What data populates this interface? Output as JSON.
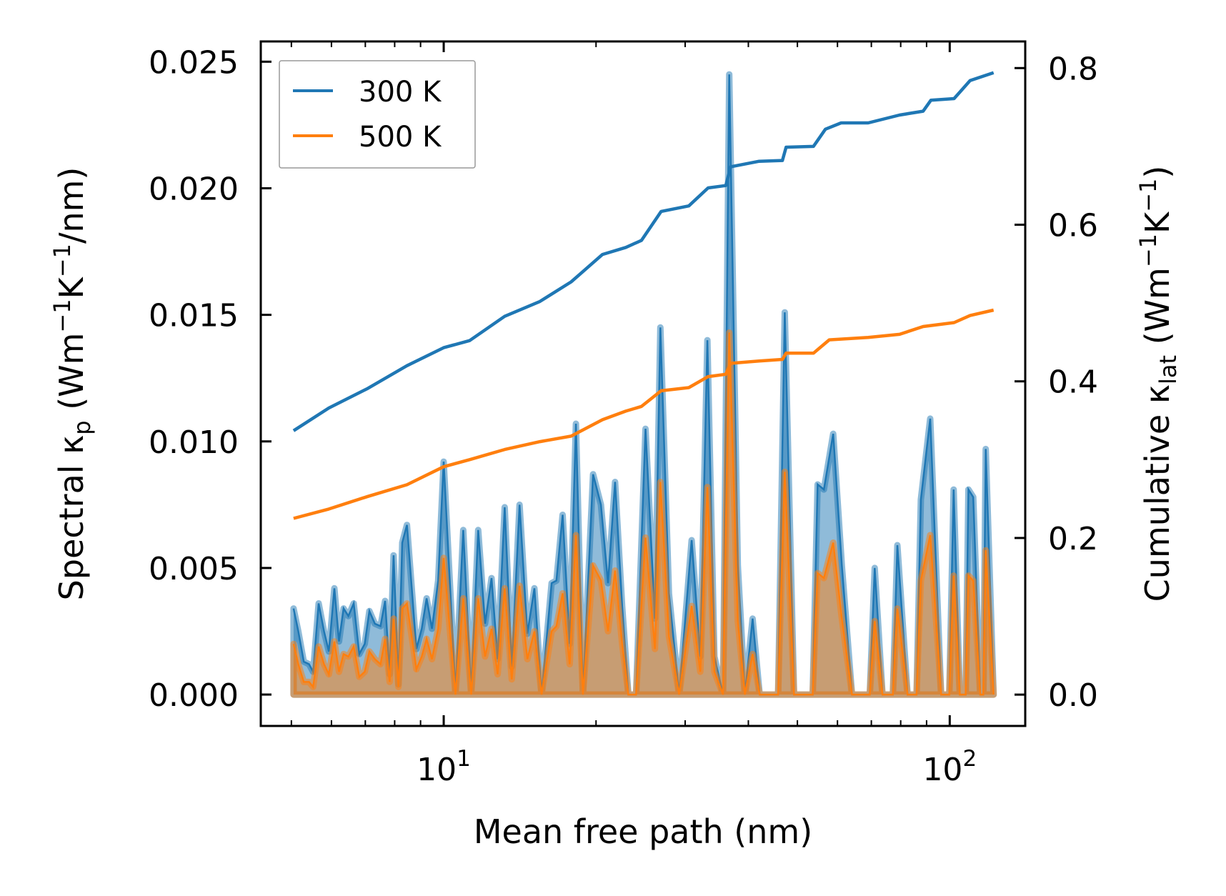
{
  "chart_data": {
    "type": "line",
    "xlabel": "Mean free path (nm)",
    "ylabel": "Spectral κ_p (Wm⁻¹K⁻¹/nm)",
    "ylabel_parts": {
      "pre": "Spectral κ",
      "sub": "p",
      "post": " (Wm",
      "sup1": "−1",
      "mid": "K",
      "sup2": "−1",
      "end": "/nm)"
    },
    "y2label": "Cumulative κ_lat (Wm⁻¹K⁻¹)",
    "y2label_parts": {
      "pre": "Cumulative κ",
      "sub": "lat",
      "post": " (Wm",
      "sup1": "−1",
      "mid": "K",
      "sup2": "−1",
      "end": ")"
    },
    "xscale": "log",
    "xlim": [
      4.35,
      141
    ],
    "ylim": [
      -0.00124,
      0.0258
    ],
    "y2lim": [
      -0.04,
      0.834
    ],
    "xticks": [
      {
        "value": 10,
        "base": "10",
        "exp": "1"
      },
      {
        "value": 100,
        "base": "10",
        "exp": "2"
      }
    ],
    "yticks": [
      {
        "value": 0,
        "label": "0.000"
      },
      {
        "value": 0.005,
        "label": "0.005"
      },
      {
        "value": 0.01,
        "label": "0.010"
      },
      {
        "value": 0.015,
        "label": "0.015"
      },
      {
        "value": 0.02,
        "label": "0.020"
      },
      {
        "value": 0.025,
        "label": "0.025"
      }
    ],
    "y2ticks": [
      {
        "value": 0,
        "label": "0.0"
      },
      {
        "value": 0.2,
        "label": "0.2"
      },
      {
        "value": 0.4,
        "label": "0.4"
      },
      {
        "value": 0.6,
        "label": "0.6"
      },
      {
        "value": 0.8,
        "label": "0.8"
      }
    ],
    "legend": {
      "placement": "top-left",
      "entries": [
        "300 K",
        "500 K"
      ]
    },
    "grid": false,
    "colors": {
      "300 K": "#1f77b4",
      "500 K": "#ff7f0e"
    },
    "spectral": {
      "x": [
        5.05,
        5.16,
        5.29,
        5.42,
        5.52,
        5.66,
        5.8,
        5.93,
        6.08,
        6.21,
        6.34,
        6.48,
        6.64,
        6.81,
        6.98,
        7.13,
        7.31,
        7.5,
        7.66,
        7.82,
        7.96,
        8.14,
        8.28,
        8.46,
        8.83,
        9.05,
        9.25,
        9.48,
        9.75,
        10.0,
        10.55,
        10.93,
        11.33,
        11.7,
        12.07,
        12.43,
        12.78,
        13.2,
        13.63,
        14.12,
        14.63,
        15.11,
        15.61,
        16.34,
        16.7,
        17.18,
        17.74,
        18.25,
        18.84,
        19.73,
        20.45,
        21.12,
        21.81,
        22.52,
        23.17,
        24.0,
        25.05,
        26.15,
        26.8,
        27.87,
        29.19,
        30.9,
        32.14,
        33.19,
        34.27,
        35.64,
        36.67,
        38.13,
        39.37,
        40.78,
        42.11,
        45.8,
        47.2,
        49.24,
        53.6,
        54.82,
        56.4,
        58.85,
        61.2,
        64.1,
        69.5,
        71.07,
        73.64,
        77.2,
        78.8,
        82.53,
        86.0,
        87.68,
        91.49,
        96.17,
        99.8,
        101.8,
        104.7,
        107.5,
        108.9,
        111.3,
        114.9,
        116.5,
        117.8,
        122.1
      ],
      "series": [
        {
          "name": "300 K",
          "values": [
            0.0034,
            0.0025,
            0.0013,
            0.0012,
            0.0009,
            0.0036,
            0.0025,
            0.0017,
            0.0042,
            0.0021,
            0.0034,
            0.0031,
            0.0036,
            0.0016,
            0.002,
            0.0033,
            0.0028,
            0.0027,
            0.0037,
            0.0008,
            0.0055,
            0.0004,
            0.006,
            0.0067,
            0.0018,
            0.0026,
            0.0038,
            0.0026,
            0.0045,
            0.0092,
            0.0001,
            0.0065,
            0.0001,
            0.0065,
            0.0028,
            0.0046,
            0.0014,
            0.0074,
            0.0011,
            0.0075,
            0.0024,
            0.0042,
            0.0,
            0.0044,
            0.0045,
            0.0071,
            0.002,
            0.0107,
            0.0,
            0.0087,
            0.0075,
            0.0044,
            0.0084,
            0.0035,
            0.0,
            0.0,
            0.0105,
            0.003,
            0.0145,
            0.004,
            0.0,
            0.0061,
            0.0015,
            0.014,
            0.0015,
            0.0,
            0.0245,
            0.0051,
            0.0,
            0.003,
            0.0,
            0.0,
            0.0151,
            0.0,
            0.0,
            0.0083,
            0.0081,
            0.0103,
            0.0051,
            0.0,
            0.0,
            0.005,
            0.0,
            0.0,
            0.0059,
            0.0,
            0.0,
            0.0077,
            0.0109,
            0.0,
            0.0,
            0.0081,
            0.0,
            0.0,
            0.0081,
            0.0078,
            0.0,
            0.0,
            0.0097,
            0.0
          ]
        },
        {
          "name": "500 K",
          "values": [
            0.002,
            0.0012,
            0.0005,
            0.0005,
            0.0003,
            0.0019,
            0.0012,
            0.0008,
            0.0021,
            0.0009,
            0.0016,
            0.0015,
            0.0019,
            0.0007,
            0.0009,
            0.0017,
            0.0014,
            0.0012,
            0.0022,
            0.0005,
            0.003,
            0.0003,
            0.0034,
            0.0036,
            0.001,
            0.0015,
            0.0022,
            0.0014,
            0.0026,
            0.0054,
            0.0,
            0.0038,
            0.0,
            0.0038,
            0.0015,
            0.0026,
            0.0008,
            0.0042,
            0.0006,
            0.0043,
            0.0014,
            0.0025,
            0.0,
            0.0025,
            0.0027,
            0.004,
            0.0012,
            0.0063,
            0.0,
            0.0051,
            0.0045,
            0.0025,
            0.0049,
            0.002,
            0.0,
            0.0,
            0.0062,
            0.0018,
            0.0084,
            0.0023,
            0.0,
            0.0035,
            0.0009,
            0.0082,
            0.0009,
            0.0,
            0.0143,
            0.0029,
            0.0,
            0.0016,
            0.0,
            0.0,
            0.0088,
            0.0,
            0.0,
            0.0048,
            0.0046,
            0.006,
            0.003,
            0.0,
            0.0,
            0.0029,
            0.0,
            0.0,
            0.0034,
            0.0,
            0.0,
            0.0045,
            0.0063,
            0.0,
            0.0,
            0.0047,
            0.0,
            0.0,
            0.0047,
            0.0045,
            0.0,
            0.0,
            0.0057,
            0.0
          ]
        }
      ]
    },
    "cumulative": {
      "series": [
        {
          "name": "300 K",
          "x": [
            5.05,
            5.93,
            7.08,
            8.46,
            10.0,
            11.25,
            13.2,
            15.49,
            17.86,
            20.6,
            22.9,
            24.6,
            26.9,
            30.5,
            33.3,
            36.1,
            36.9,
            42.0,
            46.7,
            47.5,
            53.8,
            56.8,
            61.0,
            69.0,
            79.6,
            88.6,
            91.8,
            102,
            109.7,
            122.1
          ],
          "values": [
            0.337,
            0.366,
            0.391,
            0.42,
            0.443,
            0.452,
            0.483,
            0.502,
            0.527,
            0.562,
            0.571,
            0.58,
            0.617,
            0.624,
            0.647,
            0.65,
            0.674,
            0.681,
            0.682,
            0.699,
            0.7,
            0.722,
            0.73,
            0.73,
            0.74,
            0.745,
            0.759,
            0.761,
            0.784,
            0.794
          ]
        },
        {
          "name": "500 K",
          "x": [
            5.05,
            5.93,
            7.08,
            8.46,
            10.0,
            11.25,
            13.2,
            15.49,
            17.86,
            20.6,
            22.9,
            24.6,
            26.9,
            30.5,
            33.3,
            36.1,
            36.9,
            42.0,
            46.7,
            47.5,
            53.8,
            57.8,
            69.0,
            79.6,
            88.6,
            102,
            109.7,
            122.1
          ],
          "values": [
            0.225,
            0.237,
            0.253,
            0.268,
            0.291,
            0.3,
            0.313,
            0.323,
            0.33,
            0.351,
            0.362,
            0.368,
            0.388,
            0.392,
            0.406,
            0.409,
            0.423,
            0.426,
            0.428,
            0.436,
            0.436,
            0.453,
            0.456,
            0.46,
            0.47,
            0.475,
            0.484,
            0.491
          ]
        }
      ]
    }
  }
}
